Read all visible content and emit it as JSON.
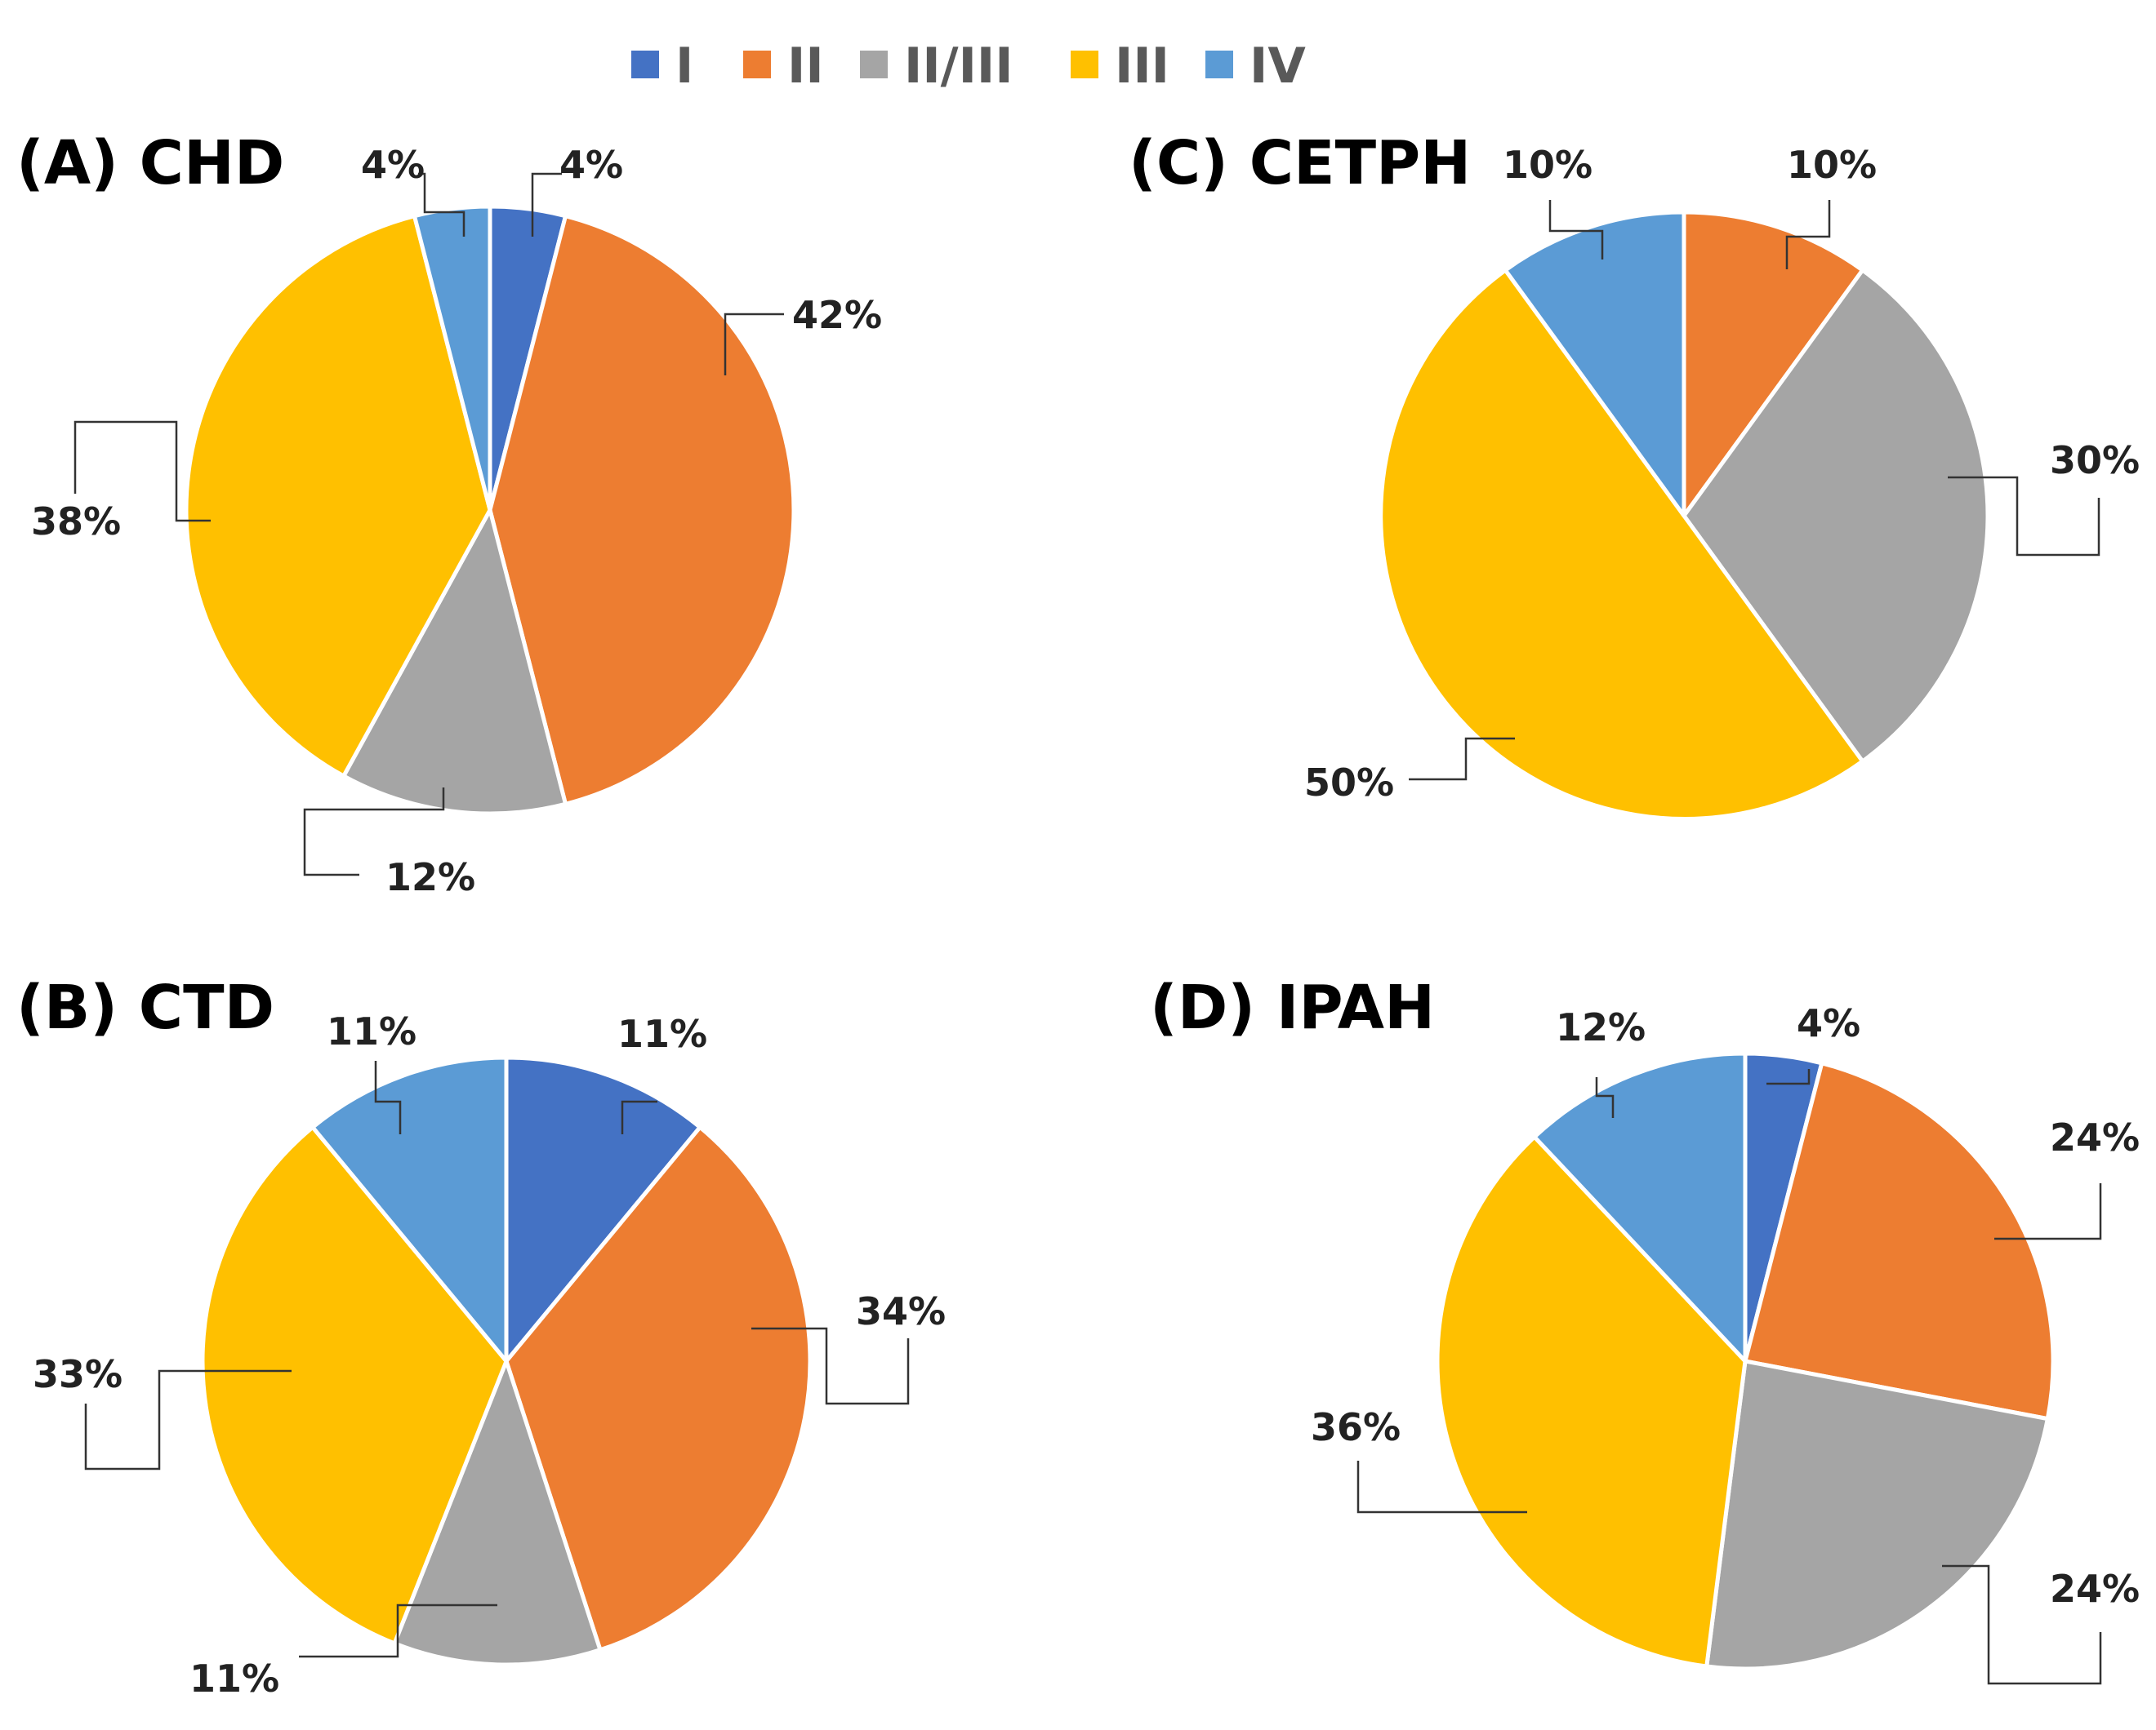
{
  "legend": {
    "colors": [
      "#4472C4",
      "#ED7D31",
      "#A5A5A5",
      "#FFC000",
      "#5B9BD5"
    ]
  },
  "chart_data": [
    {
      "type": "pie",
      "title": "(A) CHD",
      "categories": [
        "I",
        "II",
        "II/III",
        "III",
        "IV"
      ],
      "values": [
        4,
        42,
        12,
        38,
        4
      ],
      "labels": [
        "4%",
        "42%",
        "12%",
        "38%",
        "4%"
      ],
      "legend_position": "top"
    },
    {
      "type": "pie",
      "title": "(B) CTD",
      "categories": [
        "I",
        "II",
        "II/III",
        "III",
        "IV"
      ],
      "values": [
        11,
        34,
        11,
        33,
        11
      ],
      "labels": [
        "11%",
        "34%",
        "11%",
        "33%",
        "11%"
      ],
      "legend_position": "top"
    },
    {
      "type": "pie",
      "title": "(C) CETPH",
      "categories": [
        "II",
        "II/III",
        "III",
        "IV"
      ],
      "values": [
        10,
        30,
        50,
        10
      ],
      "labels": [
        "10%",
        "30%",
        "50%",
        "10%"
      ],
      "legend_position": "top"
    },
    {
      "type": "pie",
      "title": "(D) IPAH",
      "categories": [
        "I",
        "II",
        "II/III",
        "III",
        "IV"
      ],
      "values": [
        4,
        24,
        24,
        36,
        12
      ],
      "labels": [
        "4%",
        "24%",
        "24%",
        "36%",
        "12%"
      ],
      "legend_position": "top"
    }
  ]
}
